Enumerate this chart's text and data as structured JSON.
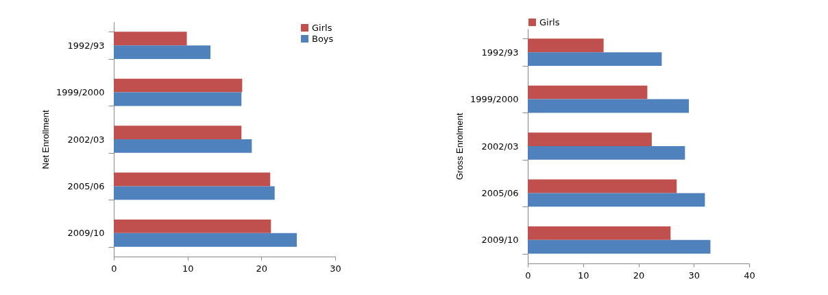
{
  "chart_data": [
    {
      "type": "bar",
      "orientation": "horizontal",
      "ylabel": "Net Enrollment",
      "categories": [
        "1992/93",
        "1999/2000",
        "2002/03",
        "2005/06",
        "2009/10"
      ],
      "series": [
        {
          "name": "Girls",
          "color": "#c0504d",
          "values": [
            9.9,
            17.4,
            17.3,
            21.2,
            21.3
          ]
        },
        {
          "name": "Boys",
          "color": "#4f81bd",
          "values": [
            13.1,
            17.3,
            18.7,
            21.8,
            24.8
          ]
        }
      ],
      "xlim": [
        0,
        30
      ],
      "xticks": [
        0,
        10,
        20,
        30
      ],
      "grid": false,
      "legend": "top right"
    },
    {
      "type": "bar",
      "orientation": "horizontal",
      "ylabel": "Gross Enrolment",
      "categories": [
        "1992/93",
        "1999/2000",
        "2002/03",
        "2005/06",
        "2009/10"
      ],
      "series": [
        {
          "name": "Girls",
          "color": "#c0504d",
          "values": [
            13.7,
            21.6,
            22.4,
            26.9,
            25.8
          ]
        },
        {
          "color": "#4f81bd",
          "values": [
            24.2,
            29.1,
            28.4,
            32.0,
            33.0
          ]
        }
      ],
      "xlim": [
        0,
        40
      ],
      "xticks": [
        0,
        10,
        20,
        30,
        40
      ],
      "grid": false,
      "legend": "top"
    }
  ]
}
